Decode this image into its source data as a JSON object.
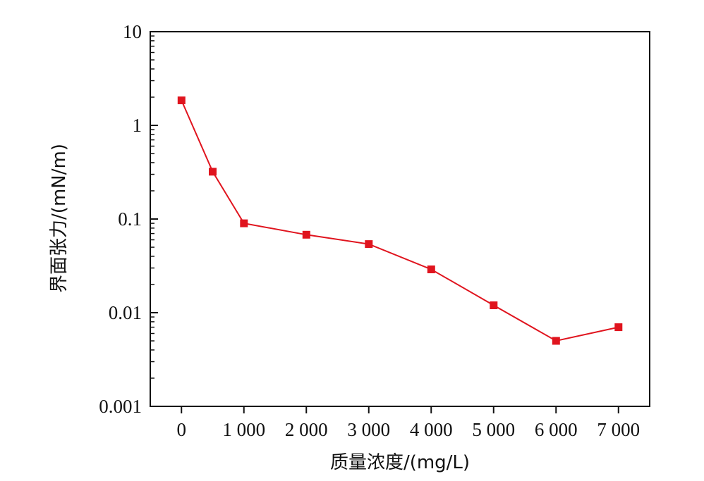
{
  "chart_data": {
    "type": "line",
    "xlabel": "质量浓度/(mg/L)",
    "ylabel": "界面张力/(mN/m)",
    "y_scale": "log",
    "xlim": [
      -500,
      7500
    ],
    "ylim": [
      0.001,
      10
    ],
    "x_ticks": [
      0,
      1000,
      2000,
      3000,
      4000,
      5000,
      6000,
      7000
    ],
    "x_tick_labels": [
      "0",
      "1 000",
      "2 000",
      "3 000",
      "4 000",
      "5 000",
      "6 000",
      "7 000"
    ],
    "y_ticks": [
      0.001,
      0.01,
      0.1,
      1,
      10
    ],
    "y_tick_labels": [
      "0.001",
      "0.01",
      "0.1",
      "1",
      "10"
    ],
    "grid": false,
    "series": [
      {
        "color": "#e0141e",
        "marker": "square",
        "points": [
          {
            "x": 0,
            "y": 1.85
          },
          {
            "x": 500,
            "y": 0.32
          },
          {
            "x": 1000,
            "y": 0.09
          },
          {
            "x": 2000,
            "y": 0.068
          },
          {
            "x": 3000,
            "y": 0.054
          },
          {
            "x": 4000,
            "y": 0.029
          },
          {
            "x": 5000,
            "y": 0.012
          },
          {
            "x": 6000,
            "y": 0.005
          },
          {
            "x": 7000,
            "y": 0.007
          }
        ]
      }
    ]
  }
}
